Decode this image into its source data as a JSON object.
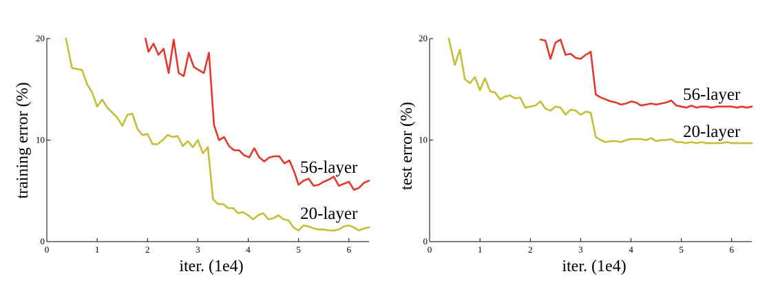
{
  "chart_data": [
    {
      "type": "line",
      "xlabel": "iter. (1e4)",
      "ylabel": "training error (%)",
      "xlim": [
        0,
        6.4
      ],
      "ylim": [
        0,
        20
      ],
      "xticks": [
        "0",
        "1",
        "2",
        "3",
        "4",
        "5",
        "6"
      ],
      "yticks": [
        "0",
        "10",
        "20"
      ],
      "grid": false,
      "series": [
        {
          "name": "56-layer",
          "color": "#e8352a",
          "x": [
            1.96,
            2.02,
            2.12,
            2.22,
            2.32,
            2.42,
            2.52,
            2.62,
            2.72,
            2.82,
            2.92,
            3.02,
            3.12,
            3.22,
            3.32,
            3.42,
            3.52,
            3.62,
            3.72,
            3.82,
            3.92,
            4.02,
            4.12,
            4.22,
            4.32,
            4.42,
            4.52,
            4.62,
            4.72,
            4.82,
            4.92,
            5.0,
            5.1,
            5.2,
            5.3,
            5.4,
            5.5,
            5.6,
            5.7,
            5.8,
            5.9,
            6.0,
            6.1,
            6.2,
            6.3,
            6.4
          ],
          "y": [
            20.0,
            18.7,
            19.5,
            18.4,
            19.0,
            16.6,
            19.9,
            16.6,
            16.3,
            18.6,
            17.2,
            16.9,
            16.6,
            18.6,
            11.5,
            10.0,
            10.3,
            9.4,
            9.0,
            9.0,
            8.5,
            8.3,
            9.2,
            8.3,
            7.9,
            8.3,
            8.4,
            8.4,
            7.7,
            8.0,
            6.8,
            5.6,
            6.0,
            6.2,
            5.5,
            5.6,
            5.9,
            6.1,
            6.4,
            5.5,
            5.7,
            5.9,
            5.1,
            5.3,
            5.8,
            6.0
          ]
        },
        {
          "name": "20-layer",
          "color": "#c6bd37",
          "x": [
            0.38,
            0.5,
            0.7,
            0.8,
            0.9,
            1.0,
            1.1,
            1.2,
            1.3,
            1.4,
            1.5,
            1.6,
            1.7,
            1.8,
            1.9,
            2.0,
            2.1,
            2.2,
            2.3,
            2.4,
            2.5,
            2.6,
            2.7,
            2.8,
            2.9,
            3.0,
            3.1,
            3.2,
            3.3,
            3.4,
            3.5,
            3.6,
            3.7,
            3.8,
            3.9,
            4.0,
            4.1,
            4.2,
            4.3,
            4.4,
            4.5,
            4.6,
            4.7,
            4.8,
            4.9,
            5.0,
            5.1,
            5.2,
            5.3,
            5.4,
            5.5,
            5.6,
            5.7,
            5.8,
            5.9,
            6.0,
            6.1,
            6.2,
            6.3,
            6.4
          ],
          "y": [
            20.0,
            17.1,
            16.9,
            15.5,
            14.7,
            13.3,
            14.0,
            13.2,
            12.7,
            12.2,
            11.4,
            12.5,
            12.6,
            11.1,
            10.5,
            10.6,
            9.6,
            9.6,
            10.0,
            10.5,
            10.3,
            10.4,
            9.4,
            9.9,
            9.3,
            10.0,
            8.7,
            9.3,
            4.2,
            3.7,
            3.7,
            3.3,
            3.3,
            2.8,
            2.9,
            2.6,
            2.2,
            2.6,
            2.8,
            2.2,
            2.3,
            2.6,
            2.2,
            2.1,
            1.4,
            1.1,
            1.6,
            1.5,
            1.3,
            1.2,
            1.2,
            1.1,
            1.1,
            1.2,
            1.5,
            1.6,
            1.4,
            1.1,
            1.3,
            1.4
          ]
        }
      ]
    },
    {
      "type": "line",
      "xlabel": "iter. (1e4)",
      "ylabel": "test error (%)",
      "xlim": [
        0,
        6.4
      ],
      "ylim": [
        0,
        20
      ],
      "xticks": [
        "0",
        "1",
        "2",
        "3",
        "4",
        "5",
        "6"
      ],
      "yticks": [
        "0",
        "10",
        "20"
      ],
      "grid": false,
      "series": [
        {
          "name": "56-layer",
          "color": "#e8352a",
          "x": [
            2.2,
            2.3,
            2.4,
            2.5,
            2.6,
            2.7,
            2.8,
            2.9,
            3.0,
            3.1,
            3.2,
            3.3,
            3.4,
            3.5,
            3.6,
            3.7,
            3.8,
            3.9,
            4.0,
            4.1,
            4.2,
            4.3,
            4.4,
            4.5,
            4.6,
            4.7,
            4.8,
            4.9,
            5.0,
            5.1,
            5.2,
            5.3,
            5.4,
            5.5,
            5.6,
            5.7,
            5.8,
            5.9,
            6.0,
            6.1,
            6.2,
            6.3,
            6.4
          ],
          "y": [
            19.9,
            19.8,
            18.0,
            19.6,
            19.9,
            18.4,
            18.5,
            18.1,
            18.0,
            18.4,
            18.7,
            14.5,
            14.2,
            14.0,
            13.8,
            13.7,
            13.5,
            13.6,
            13.8,
            13.7,
            13.4,
            13.5,
            13.6,
            13.5,
            13.6,
            13.7,
            13.9,
            13.4,
            13.3,
            13.2,
            13.4,
            13.2,
            13.3,
            13.3,
            13.2,
            13.3,
            13.3,
            13.3,
            13.3,
            13.2,
            13.3,
            13.2,
            13.3
          ]
        },
        {
          "name": "20-layer",
          "color": "#c6bd37",
          "x": [
            0.38,
            0.5,
            0.6,
            0.7,
            0.8,
            0.9,
            1.0,
            1.1,
            1.2,
            1.3,
            1.4,
            1.5,
            1.6,
            1.7,
            1.8,
            1.9,
            2.0,
            2.1,
            2.2,
            2.3,
            2.4,
            2.5,
            2.6,
            2.7,
            2.8,
            2.9,
            3.0,
            3.1,
            3.2,
            3.3,
            3.4,
            3.5,
            3.6,
            3.7,
            3.8,
            3.9,
            4.0,
            4.1,
            4.2,
            4.3,
            4.4,
            4.5,
            4.6,
            4.7,
            4.8,
            4.9,
            5.0,
            5.1,
            5.2,
            5.3,
            5.4,
            5.5,
            5.6,
            5.7,
            5.8,
            5.9,
            6.0,
            6.1,
            6.2,
            6.3,
            6.4
          ],
          "y": [
            20.0,
            17.4,
            18.9,
            16.0,
            15.6,
            16.2,
            14.9,
            16.1,
            14.8,
            14.7,
            14.0,
            14.3,
            14.4,
            14.1,
            14.2,
            13.2,
            13.3,
            13.4,
            13.8,
            13.1,
            12.9,
            13.3,
            13.2,
            12.5,
            13.0,
            12.9,
            12.5,
            12.8,
            12.7,
            10.3,
            10.0,
            9.8,
            9.9,
            9.9,
            9.8,
            10.0,
            10.1,
            10.1,
            10.1,
            10.0,
            10.2,
            9.9,
            10.0,
            10.0,
            10.1,
            9.8,
            9.8,
            9.7,
            9.8,
            9.7,
            9.8,
            9.7,
            9.7,
            9.7,
            9.7,
            9.8,
            9.7,
            9.7,
            9.7,
            9.7,
            9.7
          ]
        }
      ]
    }
  ]
}
